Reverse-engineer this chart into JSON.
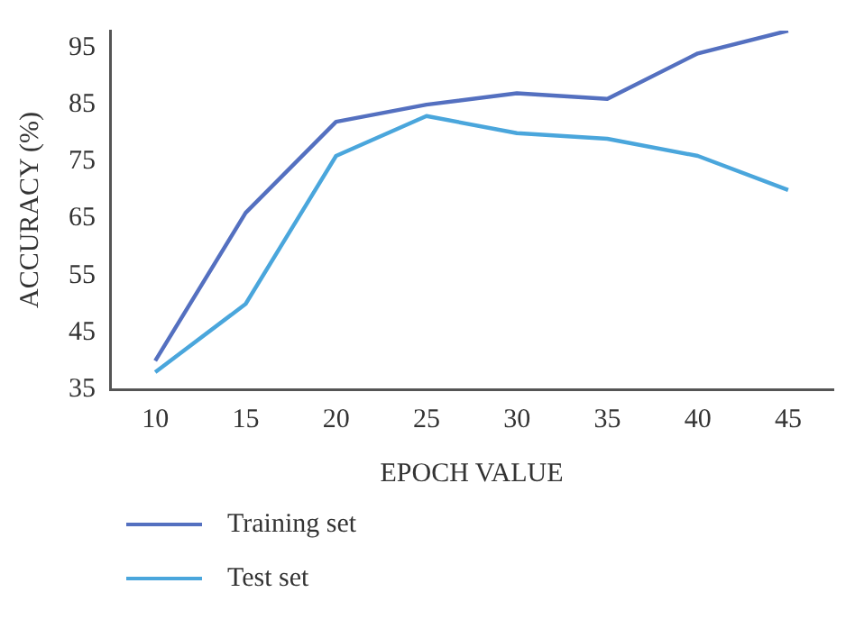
{
  "chart_data": {
    "type": "line",
    "xlabel": "EPOCH VALUE",
    "ylabel": "ACCURACY (%)",
    "categories": [
      "10",
      "15",
      "20",
      "25",
      "30",
      "35",
      "40",
      "45"
    ],
    "ylim": [
      35,
      98
    ],
    "yticks": [
      35,
      45,
      55,
      65,
      75,
      85,
      95
    ],
    "grid": false,
    "legend": "bottom",
    "marker": "none",
    "series": [
      {
        "name": "Training set",
        "color": "#5470c0",
        "values": [
          40,
          66,
          82,
          85,
          87,
          86,
          94,
          98
        ]
      },
      {
        "name": "Test set",
        "color": "#4aa6dc",
        "values": [
          38,
          50,
          76,
          83,
          80,
          79,
          76,
          70
        ]
      }
    ]
  }
}
